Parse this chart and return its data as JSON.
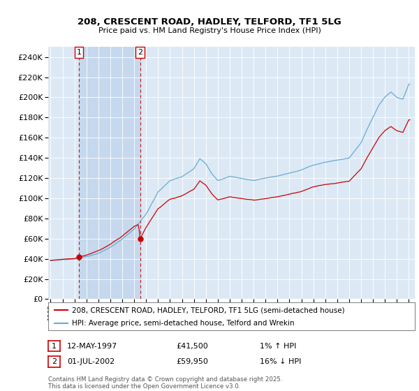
{
  "title1": "208, CRESCENT ROAD, HADLEY, TELFORD, TF1 5LG",
  "title2": "Price paid vs. HM Land Registry's House Price Index (HPI)",
  "red_label": "208, CRESCENT ROAD, HADLEY, TELFORD, TF1 5LG (semi-detached house)",
  "blue_label": "HPI: Average price, semi-detached house, Telford and Wrekin",
  "annotation1_date": "12-MAY-1997",
  "annotation1_price": "£41,500",
  "annotation1_hpi": "1% ↑ HPI",
  "annotation1_year": 1997.37,
  "annotation1_value": 41500,
  "annotation2_date": "01-JUL-2002",
  "annotation2_price": "£59,950",
  "annotation2_hpi": "16% ↓ HPI",
  "annotation2_year": 2002.5,
  "annotation2_value": 59950,
  "footer": "Contains HM Land Registry data © Crown copyright and database right 2025.\nThis data is licensed under the Open Government Licence v3.0.",
  "ylim": [
    0,
    250000
  ],
  "ytick_step": 20000,
  "xlim_start": 1994.8,
  "xlim_end": 2025.5,
  "bg_color": "#dce9f5",
  "shade_color": "#c5d8ed",
  "red_color": "#cc0000",
  "blue_color": "#6aaad4"
}
